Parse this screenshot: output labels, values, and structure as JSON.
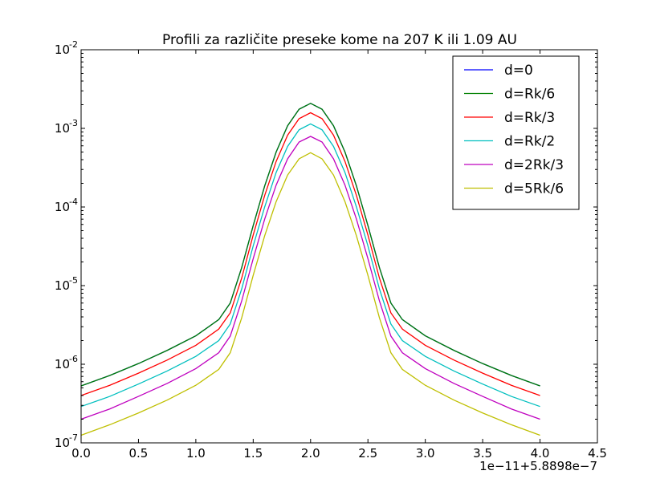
{
  "chart_data": {
    "type": "line",
    "title": "Profili za različite preseke kome na 207 K ili 1.09 AU",
    "xlabel": "",
    "ylabel": "",
    "x_offset_label": "1e−11+5.8898e−7",
    "xlim": [
      0.0,
      4.5
    ],
    "ylim": [
      1e-07,
      0.01
    ],
    "yscale": "log",
    "x_ticks": [
      {
        "value": 0.0,
        "label": "0.0"
      },
      {
        "value": 0.5,
        "label": "0.5"
      },
      {
        "value": 1.0,
        "label": "1.0"
      },
      {
        "value": 1.5,
        "label": "1.5"
      },
      {
        "value": 2.0,
        "label": "2.0"
      },
      {
        "value": 2.5,
        "label": "2.5"
      },
      {
        "value": 3.0,
        "label": "3.0"
      },
      {
        "value": 3.5,
        "label": "3.5"
      },
      {
        "value": 4.0,
        "label": "4.0"
      },
      {
        "value": 4.5,
        "label": "4.5"
      }
    ],
    "y_ticks": [
      {
        "value": 1e-07,
        "base": "10",
        "exp": "-7"
      },
      {
        "value": 1e-06,
        "base": "10",
        "exp": "-6"
      },
      {
        "value": 1e-05,
        "base": "10",
        "exp": "-5"
      },
      {
        "value": 0.0001,
        "base": "10",
        "exp": "-4"
      },
      {
        "value": 0.001,
        "base": "10",
        "exp": "-3"
      },
      {
        "value": 0.01,
        "base": "10",
        "exp": "-2"
      }
    ],
    "grid": false,
    "legend_position": "top-right",
    "x": [
      0.0,
      0.25,
      0.5,
      0.75,
      1.0,
      1.2,
      1.3,
      1.4,
      1.5,
      1.6,
      1.7,
      1.8,
      1.9,
      2.0,
      2.1,
      2.2,
      2.3,
      2.4,
      2.5,
      2.6,
      2.7,
      2.8,
      3.0,
      3.25,
      3.5,
      3.75,
      4.0
    ],
    "series": [
      {
        "name": "d=0",
        "color": "#0000ff",
        "values": [
          5.3e-07,
          7.2e-07,
          1.02e-06,
          1.5e-06,
          2.3e-06,
          3.7e-06,
          6e-06,
          1.7e-05,
          5.8e-05,
          0.000185,
          0.0005,
          0.00108,
          0.00175,
          0.00208,
          0.00175,
          0.00108,
          0.0005,
          0.000185,
          5.8e-05,
          1.7e-05,
          6e-06,
          3.7e-06,
          2.3e-06,
          1.5e-06,
          1.02e-06,
          7.2e-07,
          5.3e-07
        ]
      },
      {
        "name": "d=Rk/6",
        "color": "#008000",
        "values": [
          5.3e-07,
          7.2e-07,
          1.02e-06,
          1.5e-06,
          2.3e-06,
          3.7e-06,
          6e-06,
          1.7e-05,
          5.8e-05,
          0.000185,
          0.0005,
          0.00108,
          0.00175,
          0.00208,
          0.00175,
          0.00108,
          0.0005,
          0.000185,
          5.8e-05,
          1.7e-05,
          6e-06,
          3.7e-06,
          2.3e-06,
          1.5e-06,
          1.02e-06,
          7.2e-07,
          5.3e-07
        ]
      },
      {
        "name": "d=Rk/3",
        "color": "#ff0000",
        "values": [
          4e-07,
          5.4e-07,
          7.7e-07,
          1.13e-06,
          1.74e-06,
          2.8e-06,
          4.5e-06,
          1.25e-05,
          4.4e-05,
          0.00014,
          0.00038,
          0.00082,
          0.00133,
          0.00158,
          0.00133,
          0.00082,
          0.00038,
          0.00014,
          4.4e-05,
          1.25e-05,
          4.5e-06,
          2.8e-06,
          1.74e-06,
          1.13e-06,
          7.7e-07,
          5.4e-07,
          4e-07
        ]
      },
      {
        "name": "d=Rk/2",
        "color": "#00bfbf",
        "values": [
          2.9e-07,
          3.9e-07,
          5.6e-07,
          8.2e-07,
          1.26e-06,
          2e-06,
          3.25e-06,
          9.1e-06,
          3.2e-05,
          0.0001,
          0.000275,
          0.00059,
          0.00096,
          0.00114,
          0.00096,
          0.00059,
          0.000275,
          0.0001,
          3.2e-05,
          9.1e-06,
          3.25e-06,
          2e-06,
          1.26e-06,
          8.2e-07,
          5.6e-07,
          3.9e-07,
          2.9e-07
        ]
      },
      {
        "name": "d=2Rk/3",
        "color": "#bf00bf",
        "values": [
          2e-07,
          2.7e-07,
          3.9e-07,
          5.7e-07,
          8.8e-07,
          1.4e-06,
          2.28e-06,
          6.4e-06,
          2.2e-05,
          7e-05,
          0.00019,
          0.00041,
          0.00067,
          0.00079,
          0.00067,
          0.00041,
          0.00019,
          7e-05,
          2.2e-05,
          6.4e-06,
          2.28e-06,
          1.4e-06,
          8.8e-07,
          5.7e-07,
          3.9e-07,
          2.7e-07,
          2e-07
        ]
      },
      {
        "name": "d=5Rk/6",
        "color": "#bfbf00",
        "values": [
          1.25e-07,
          1.7e-07,
          2.4e-07,
          3.5e-07,
          5.4e-07,
          8.6e-07,
          1.4e-06,
          3.9e-06,
          1.35e-05,
          4.3e-05,
          0.000117,
          0.000255,
          0.00041,
          0.00049,
          0.00041,
          0.000255,
          0.000117,
          4.3e-05,
          1.35e-05,
          3.9e-06,
          1.4e-06,
          8.6e-07,
          5.4e-07,
          3.5e-07,
          2.4e-07,
          1.7e-07,
          1.25e-07
        ]
      }
    ]
  }
}
